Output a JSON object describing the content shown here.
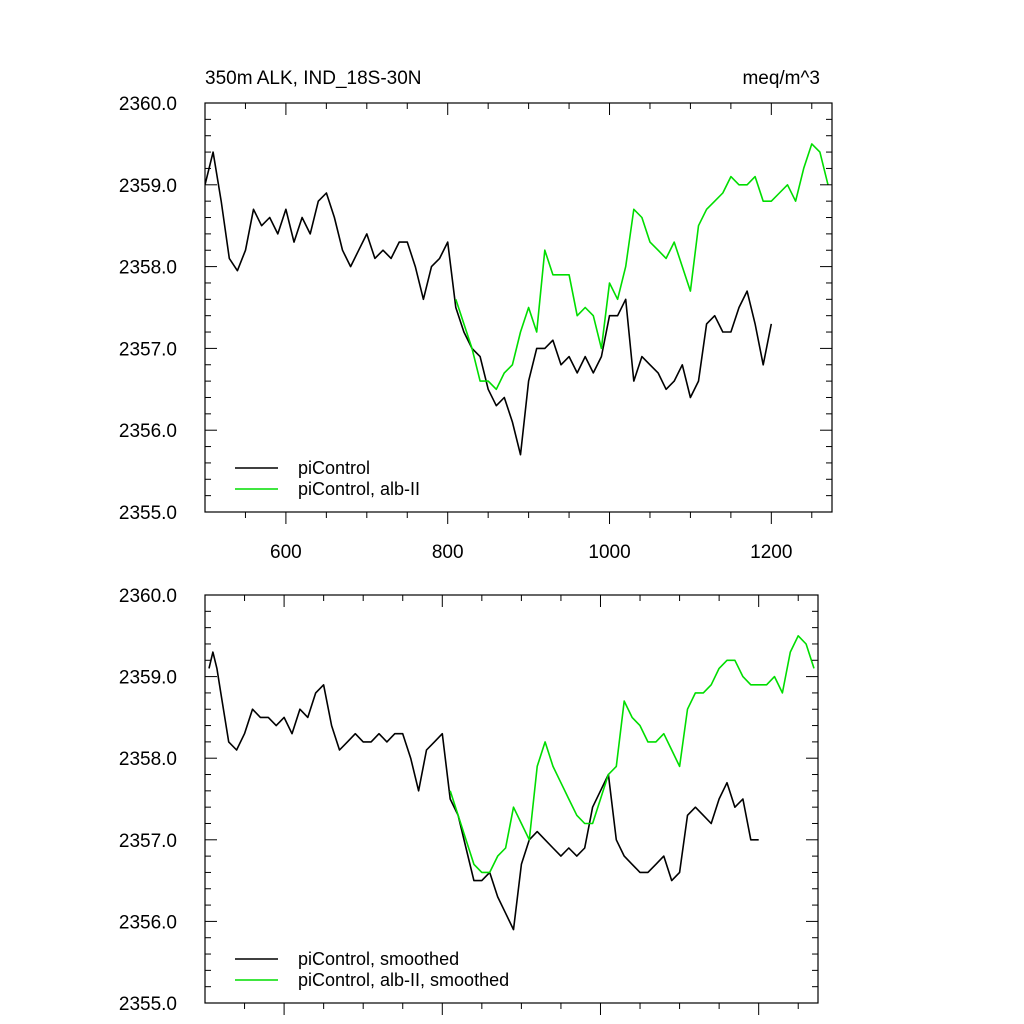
{
  "chart_data": [
    {
      "type": "line",
      "title": "350m ALK, IND_18S-30N",
      "units": "meq/m^3",
      "xlim": [
        500,
        1275
      ],
      "ylim": [
        2355.0,
        2360.0
      ],
      "xticks": [
        600,
        800,
        1000,
        1200
      ],
      "xtick_labels": [
        "600",
        "800",
        "1000",
        "1200"
      ],
      "yticks": [
        2355.0,
        2356.0,
        2357.0,
        2358.0,
        2359.0,
        2360.0
      ],
      "ytick_labels": [
        "2355.0",
        "2356.0",
        "2357.0",
        "2358.0",
        "2359.0",
        "2360.0"
      ],
      "legend_position": "bottom-left",
      "series": [
        {
          "name": "piControl",
          "color": "#000000",
          "x": [
            500,
            510,
            520,
            530,
            540,
            550,
            560,
            570,
            580,
            590,
            600,
            610,
            620,
            630,
            640,
            650,
            660,
            670,
            680,
            690,
            700,
            710,
            720,
            730,
            740,
            750,
            760,
            770,
            780,
            790,
            800,
            810,
            820,
            830,
            840,
            850,
            860,
            870,
            880,
            890,
            900,
            910,
            920,
            930,
            940,
            950,
            960,
            970,
            980,
            990,
            1000,
            1010,
            1020,
            1030,
            1040,
            1050,
            1060,
            1070,
            1080,
            1090,
            1100,
            1110,
            1120,
            1130,
            1140,
            1150,
            1160,
            1170,
            1180,
            1190,
            1200
          ],
          "values": [
            2359.0,
            2359.4,
            2358.8,
            2358.1,
            2357.95,
            2358.2,
            2358.7,
            2358.5,
            2358.6,
            2358.4,
            2358.7,
            2358.3,
            2358.6,
            2358.4,
            2358.8,
            2358.9,
            2358.6,
            2358.2,
            2358.0,
            2358.2,
            2358.4,
            2358.1,
            2358.2,
            2358.1,
            2358.3,
            2358.3,
            2358.0,
            2357.6,
            2358.0,
            2358.1,
            2358.3,
            2357.5,
            2357.2,
            2357.0,
            2356.9,
            2356.5,
            2356.3,
            2356.4,
            2356.1,
            2355.7,
            2356.6,
            2357.0,
            2357.0,
            2357.1,
            2356.8,
            2356.9,
            2356.7,
            2356.9,
            2356.7,
            2356.9,
            2357.4,
            2357.4,
            2357.6,
            2356.6,
            2356.9,
            2356.8,
            2356.7,
            2356.5,
            2356.6,
            2356.8,
            2356.4,
            2356.6,
            2357.3,
            2357.4,
            2357.2,
            2357.2,
            2357.5,
            2357.7,
            2357.3,
            2356.8,
            2357.3
          ]
        },
        {
          "name": "piControl, alb-II",
          "color": "#00dd00",
          "x": [
            810,
            820,
            830,
            840,
            850,
            860,
            870,
            880,
            890,
            900,
            910,
            920,
            930,
            940,
            950,
            960,
            970,
            980,
            990,
            1000,
            1010,
            1020,
            1030,
            1040,
            1050,
            1060,
            1070,
            1080,
            1090,
            1100,
            1110,
            1120,
            1130,
            1140,
            1150,
            1160,
            1170,
            1180,
            1190,
            1200,
            1210,
            1220,
            1230,
            1240,
            1250,
            1260,
            1270
          ],
          "values": [
            2357.6,
            2357.3,
            2357.0,
            2356.6,
            2356.6,
            2356.5,
            2356.7,
            2356.8,
            2357.2,
            2357.5,
            2357.2,
            2358.2,
            2357.9,
            2357.9,
            2357.9,
            2357.4,
            2357.5,
            2357.4,
            2357.0,
            2357.8,
            2357.6,
            2358.0,
            2358.7,
            2358.6,
            2358.3,
            2358.2,
            2358.1,
            2358.3,
            2358.0,
            2357.7,
            2358.5,
            2358.7,
            2358.8,
            2358.9,
            2359.1,
            2359.0,
            2359.0,
            2359.1,
            2358.8,
            2358.8,
            2358.9,
            2359.0,
            2358.8,
            2359.2,
            2359.5,
            2359.4,
            2359.0
          ]
        }
      ]
    },
    {
      "type": "line",
      "xlim": [
        500,
        1275
      ],
      "ylim": [
        2355.0,
        2360.0
      ],
      "xticks": [
        600,
        800,
        1000,
        1200
      ],
      "yticks": [
        2355.0,
        2356.0,
        2357.0,
        2358.0,
        2359.0,
        2360.0
      ],
      "ytick_labels": [
        "2355.0",
        "2356.0",
        "2357.0",
        "2358.0",
        "2359.0",
        "2360.0"
      ],
      "legend_position": "bottom-left",
      "series": [
        {
          "name": "piControl, smoothed",
          "color": "#000000",
          "x": [
            505,
            510,
            515,
            520,
            530,
            540,
            550,
            560,
            570,
            580,
            590,
            600,
            610,
            620,
            630,
            640,
            650,
            660,
            670,
            680,
            690,
            700,
            710,
            720,
            730,
            740,
            750,
            760,
            770,
            780,
            790,
            800,
            810,
            820,
            830,
            840,
            850,
            860,
            870,
            880,
            890,
            900,
            910,
            920,
            930,
            940,
            950,
            960,
            970,
            980,
            990,
            1000,
            1010,
            1020,
            1030,
            1040,
            1050,
            1060,
            1070,
            1080,
            1090,
            1100,
            1110,
            1120,
            1130,
            1140,
            1150,
            1160,
            1170,
            1180,
            1190,
            1200
          ],
          "values": [
            2359.1,
            2359.3,
            2359.1,
            2358.8,
            2358.2,
            2358.1,
            2358.3,
            2358.6,
            2358.5,
            2358.5,
            2358.4,
            2358.5,
            2358.3,
            2358.6,
            2358.5,
            2358.8,
            2358.9,
            2358.4,
            2358.1,
            2358.2,
            2358.3,
            2358.2,
            2358.2,
            2358.3,
            2358.2,
            2358.3,
            2358.3,
            2358.0,
            2357.6,
            2358.1,
            2358.2,
            2358.3,
            2357.5,
            2357.3,
            2356.9,
            2356.5,
            2356.5,
            2356.6,
            2356.3,
            2356.1,
            2355.9,
            2356.7,
            2357.0,
            2357.1,
            2357.0,
            2356.9,
            2356.8,
            2356.9,
            2356.8,
            2356.9,
            2357.4,
            2357.6,
            2357.8,
            2357.0,
            2356.8,
            2356.7,
            2356.6,
            2356.6,
            2356.7,
            2356.8,
            2356.5,
            2356.6,
            2357.3,
            2357.4,
            2357.3,
            2357.2,
            2357.5,
            2357.7,
            2357.4,
            2357.5,
            2357.0,
            2357.0
          ]
        },
        {
          "name": "piControl, alb-II, smoothed",
          "color": "#00dd00",
          "x": [
            810,
            820,
            830,
            840,
            850,
            860,
            870,
            880,
            890,
            900,
            910,
            920,
            930,
            940,
            950,
            960,
            970,
            980,
            990,
            1000,
            1010,
            1020,
            1030,
            1040,
            1050,
            1060,
            1070,
            1080,
            1090,
            1100,
            1110,
            1120,
            1130,
            1140,
            1150,
            1160,
            1170,
            1180,
            1190,
            1200,
            1210,
            1220,
            1230,
            1240,
            1250,
            1260,
            1270
          ],
          "values": [
            2357.6,
            2357.3,
            2357.0,
            2356.7,
            2356.6,
            2356.6,
            2356.8,
            2356.9,
            2357.4,
            2357.2,
            2357.0,
            2357.9,
            2358.2,
            2357.9,
            2357.7,
            2357.5,
            2357.3,
            2357.2,
            2357.2,
            2357.5,
            2357.8,
            2357.9,
            2358.7,
            2358.5,
            2358.4,
            2358.2,
            2358.2,
            2358.3,
            2358.1,
            2357.9,
            2358.6,
            2358.8,
            2358.8,
            2358.9,
            2359.1,
            2359.2,
            2359.2,
            2359.0,
            2358.9,
            2358.9,
            2358.9,
            2359.0,
            2358.8,
            2359.3,
            2359.5,
            2359.4,
            2359.1
          ]
        }
      ]
    }
  ]
}
